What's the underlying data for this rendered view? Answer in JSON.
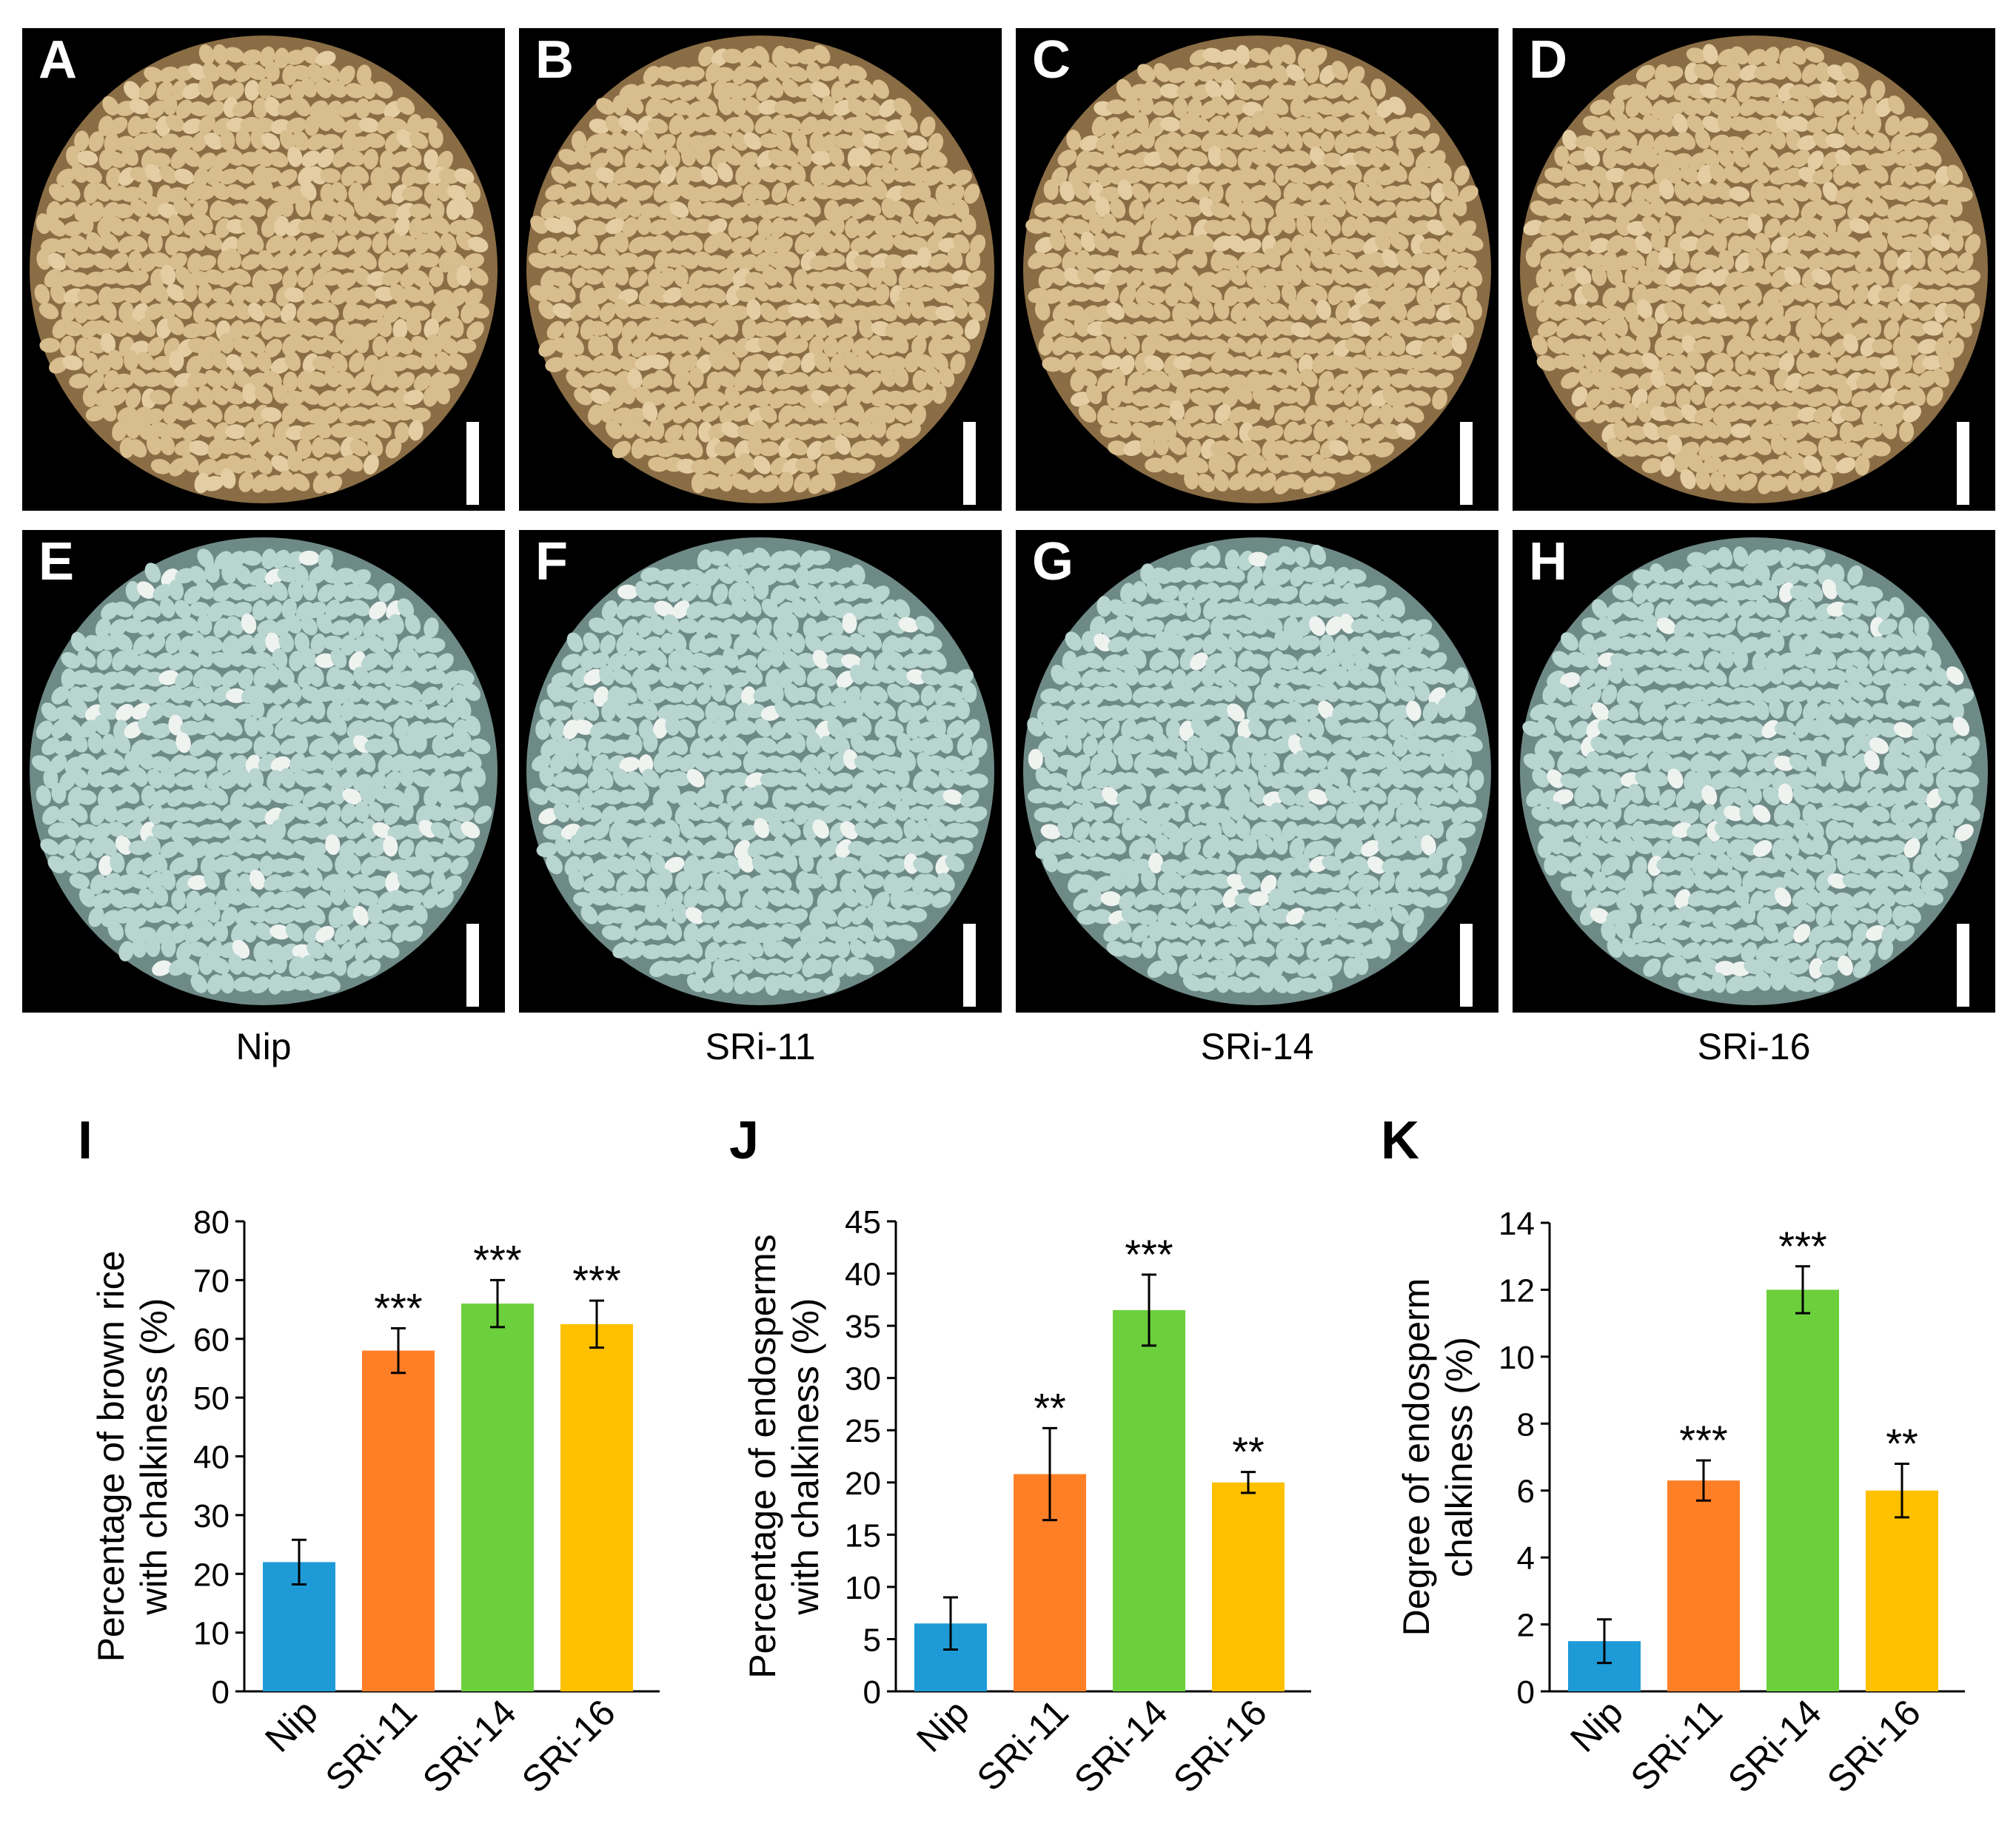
{
  "panels": [
    {
      "label": "A",
      "kind": "brown"
    },
    {
      "label": "B",
      "kind": "brown"
    },
    {
      "label": "C",
      "kind": "brown"
    },
    {
      "label": "D",
      "kind": "brown"
    },
    {
      "label": "E",
      "kind": "polished"
    },
    {
      "label": "F",
      "kind": "polished"
    },
    {
      "label": "G",
      "kind": "polished"
    },
    {
      "label": "H",
      "kind": "polished"
    }
  ],
  "genotypes": [
    "Nip",
    "SRi-11",
    "SRi-14",
    "SRi-16"
  ],
  "colors": {
    "Nip": "#1E9BD7",
    "SRi-11": "#FF7F27",
    "SRi-14": "#6CD03C",
    "SRi-16": "#FFC000",
    "brown_grain": "#D8BD8E",
    "polished_grain": "#B9D5CF",
    "panel_bg": "#000000"
  },
  "chart_data": [
    {
      "label": "I",
      "type": "bar",
      "categories": [
        "Nip",
        "SRi-11",
        "SRi-14",
        "SRi-16"
      ],
      "values": [
        22,
        58,
        66,
        62.5
      ],
      "errors": [
        3.8,
        3.8,
        4.0,
        4.0
      ],
      "significance": [
        "",
        "***",
        "***",
        "***"
      ],
      "ylabel_line1": "Percentage of brown rice",
      "ylabel_line2": "with chalkiness (%)",
      "ylim": [
        0,
        80
      ],
      "yticks": [
        0,
        10,
        20,
        30,
        40,
        50,
        60,
        70,
        80
      ]
    },
    {
      "label": "J",
      "type": "bar",
      "categories": [
        "Nip",
        "SRi-11",
        "SRi-14",
        "SRi-16"
      ],
      "values": [
        6.5,
        20.8,
        36.5,
        20.0
      ],
      "errors": [
        2.5,
        4.4,
        3.4,
        1.0
      ],
      "significance": [
        "",
        "**",
        "***",
        "**"
      ],
      "ylabel_line1": "Percentage of endosperms",
      "ylabel_line2": "with chalkiness (%)",
      "ylim": [
        0,
        45
      ],
      "yticks": [
        0,
        5,
        10,
        15,
        20,
        25,
        30,
        35,
        40,
        45
      ]
    },
    {
      "label": "K",
      "type": "bar",
      "categories": [
        "Nip",
        "SRi-11",
        "SRi-14",
        "SRi-16"
      ],
      "values": [
        1.5,
        6.3,
        12.0,
        6.0
      ],
      "errors": [
        0.65,
        0.6,
        0.7,
        0.8
      ],
      "significance": [
        "",
        "***",
        "***",
        "**"
      ],
      "ylabel_line1": "Degree of endosperm",
      "ylabel_line2": "chalkiness (%)",
      "ylim": [
        0,
        14
      ],
      "yticks": [
        0,
        2,
        4,
        6,
        8,
        10,
        12,
        14
      ]
    }
  ]
}
